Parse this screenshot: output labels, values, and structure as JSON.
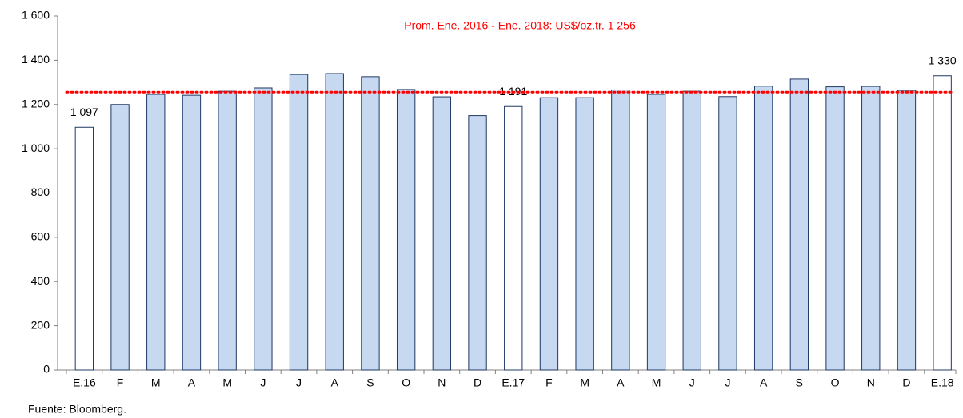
{
  "chart_data": {
    "type": "bar",
    "annotation": "Prom. Ene. 2016 - Ene. 2018: US$/oz.tr. 1 256",
    "average": 1256,
    "average_color": "#ff0000",
    "source": "Fuente: Bloomberg.",
    "categories": [
      "E.16",
      "F",
      "M",
      "A",
      "M",
      "J",
      "J",
      "A",
      "S",
      "O",
      "N",
      "D",
      "E.17",
      "F",
      "M",
      "A",
      "M",
      "J",
      "J",
      "A",
      "S",
      "O",
      "N",
      "D",
      "E.18"
    ],
    "values": [
      1097,
      1200,
      1246,
      1242,
      1260,
      1275,
      1336,
      1340,
      1326,
      1268,
      1235,
      1150,
      1191,
      1231,
      1231,
      1266,
      1246,
      1260,
      1236,
      1283,
      1315,
      1280,
      1282,
      1264,
      1330
    ],
    "value_labels": [
      "1 097",
      null,
      null,
      null,
      null,
      null,
      null,
      null,
      null,
      null,
      null,
      null,
      "1 191",
      null,
      null,
      null,
      null,
      null,
      null,
      null,
      null,
      null,
      null,
      null,
      "1 330"
    ],
    "colors": [
      "#ffffff",
      "#c6d9f1",
      "#c6d9f1",
      "#c6d9f1",
      "#c6d9f1",
      "#c6d9f1",
      "#c6d9f1",
      "#c6d9f1",
      "#c6d9f1",
      "#c6d9f1",
      "#c6d9f1",
      "#c6d9f1",
      "#ffffff",
      "#c6d9f1",
      "#c6d9f1",
      "#c6d9f1",
      "#c6d9f1",
      "#c6d9f1",
      "#c6d9f1",
      "#c6d9f1",
      "#c6d9f1",
      "#c6d9f1",
      "#c6d9f1",
      "#c6d9f1",
      "#ffffff"
    ],
    "border_color": "#1f3864",
    "ylim": [
      0,
      1600
    ],
    "yticks": [
      0,
      200,
      400,
      600,
      800,
      {
        "value": 1000,
        "label": "1 000"
      },
      {
        "value": 1200,
        "label": "1 200"
      },
      {
        "value": 1400,
        "label": "1 400"
      },
      {
        "value": 1600,
        "label": "1 600"
      }
    ],
    "grid": false
  }
}
